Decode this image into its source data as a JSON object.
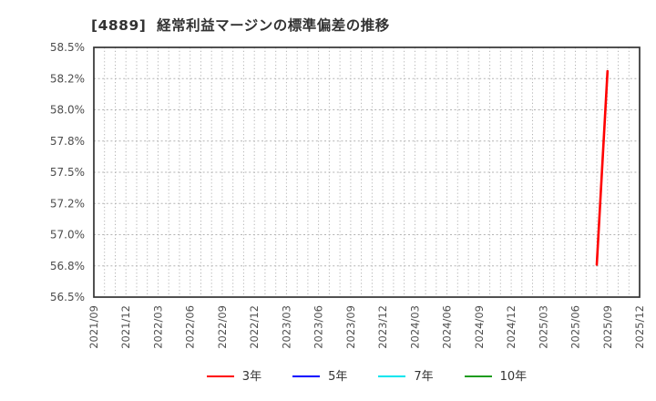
{
  "title": "[4889]  経常利益マージンの標準偏差の推移",
  "chart_data": {
    "type": "line",
    "title": "[4889]  経常利益マージンの標準偏差の推移",
    "x_axis": {
      "start": "2021/09",
      "end": "2025/12",
      "label_interval_months": 3,
      "minor_grid_interval_months": 1,
      "tick_labels": [
        "2021/09",
        "2021/12",
        "2022/03",
        "2022/06",
        "2022/09",
        "2022/12",
        "2023/03",
        "2023/06",
        "2023/09",
        "2023/12",
        "2024/03",
        "2024/06",
        "2024/09",
        "2024/12",
        "2025/03",
        "2025/06",
        "2025/09",
        "2025/12"
      ]
    },
    "y_axis": {
      "min": 56.5,
      "max": 58.5,
      "grid_step": 0.25,
      "unit": "%",
      "tick_labels": [
        "58.5%",
        "58.2%",
        "58.0%",
        "57.8%",
        "57.5%",
        "57.2%",
        "57.0%",
        "56.8%",
        "56.5%"
      ]
    },
    "grid": true,
    "legend_position": "bottom",
    "series": [
      {
        "name": "3年",
        "color": "#ff0000",
        "points": [
          {
            "x": "2025/08",
            "y": 56.76
          },
          {
            "x": "2025/09",
            "y": 58.31
          }
        ]
      },
      {
        "name": "5年",
        "color": "#0000ff",
        "points": []
      },
      {
        "name": "7年",
        "color": "#00e5ee",
        "points": []
      },
      {
        "name": "10年",
        "color": "#1e9b1e",
        "points": []
      }
    ],
    "style": {
      "spine_color": "#333333",
      "grid_color": "#b3b3b3",
      "tick_label_color": "#4d4d4d",
      "title_color": "#333333",
      "background": "#ffffff"
    }
  }
}
